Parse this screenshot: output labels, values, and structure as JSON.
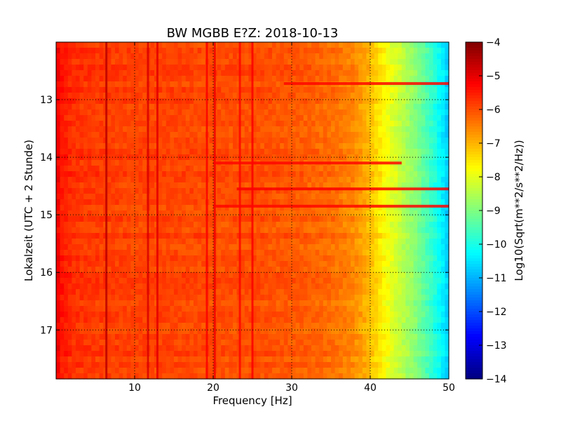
{
  "chart_data": {
    "type": "heatmap",
    "title": "BW MGBB E?Z: 2018-10-13",
    "xlabel": "Frequency [Hz]",
    "ylabel": "Lokalzeit (UTC + 2 Stunde)",
    "xlim": [
      0,
      50
    ],
    "ylim": [
      17.85,
      12.0
    ],
    "y_inverted": true,
    "grid": true,
    "x_ticks": [
      {
        "value": 10,
        "label": "10"
      },
      {
        "value": 20,
        "label": "20"
      },
      {
        "value": 30,
        "label": "30"
      },
      {
        "value": 40,
        "label": "40"
      },
      {
        "value": 50,
        "label": "50"
      }
    ],
    "y_ticks": [
      {
        "value": 13,
        "label": "13"
      },
      {
        "value": 14,
        "label": "14"
      },
      {
        "value": 15,
        "label": "15"
      },
      {
        "value": 16,
        "label": "16"
      },
      {
        "value": 17,
        "label": "17"
      }
    ],
    "colorbar": {
      "label": "Log10(Sqrt(m**2/s**2/Hz))",
      "colormap": "jet",
      "range": [
        -14,
        -4
      ],
      "ticks": [
        {
          "value": -4,
          "label": "−4"
        },
        {
          "value": -5,
          "label": "−5"
        },
        {
          "value": -6,
          "label": "−6"
        },
        {
          "value": -7,
          "label": "−7"
        },
        {
          "value": -8,
          "label": "−8"
        },
        {
          "value": -9,
          "label": "−9"
        },
        {
          "value": -10,
          "label": "−10"
        },
        {
          "value": -11,
          "label": "−11"
        },
        {
          "value": -12,
          "label": "−12"
        },
        {
          "value": -13,
          "label": "−13"
        },
        {
          "value": -14,
          "label": "−14"
        }
      ]
    },
    "spectral_profile": {
      "frequency_hz": [
        0,
        0.5,
        2,
        5,
        10,
        15,
        20,
        25,
        30,
        35,
        38,
        40,
        42,
        44,
        46,
        48,
        49,
        50
      ],
      "log_amplitude": [
        -5.0,
        -5.4,
        -5.7,
        -5.8,
        -5.9,
        -5.9,
        -6.0,
        -6.0,
        -6.1,
        -6.3,
        -6.6,
        -7.1,
        -7.8,
        -8.4,
        -9.0,
        -9.8,
        -10.3,
        -10.8
      ]
    },
    "persistent_lines": [
      {
        "frequency_hz": 6.4,
        "log_amplitude": -4.6
      },
      {
        "frequency_hz": 11.7,
        "log_amplitude": -4.9
      },
      {
        "frequency_hz": 12.9,
        "log_amplitude": -5.0
      },
      {
        "frequency_hz": 19.2,
        "log_amplitude": -5.2
      },
      {
        "frequency_hz": 20.2,
        "log_amplitude": -5.1
      },
      {
        "frequency_hz": 23.4,
        "log_amplitude": -5.3
      },
      {
        "frequency_hz": 25.0,
        "log_amplitude": -5.2
      }
    ],
    "broadband_events": [
      {
        "time": 12.72,
        "from_hz": 29,
        "to_hz": 50,
        "log_amplitude": -5.3
      },
      {
        "time": 14.1,
        "from_hz": 20,
        "to_hz": 44,
        "log_amplitude": -5.3
      },
      {
        "time": 14.55,
        "from_hz": 23,
        "to_hz": 50,
        "log_amplitude": -5.2
      },
      {
        "time": 14.85,
        "from_hz": 20,
        "to_hz": 50,
        "log_amplitude": -5.3
      }
    ]
  }
}
